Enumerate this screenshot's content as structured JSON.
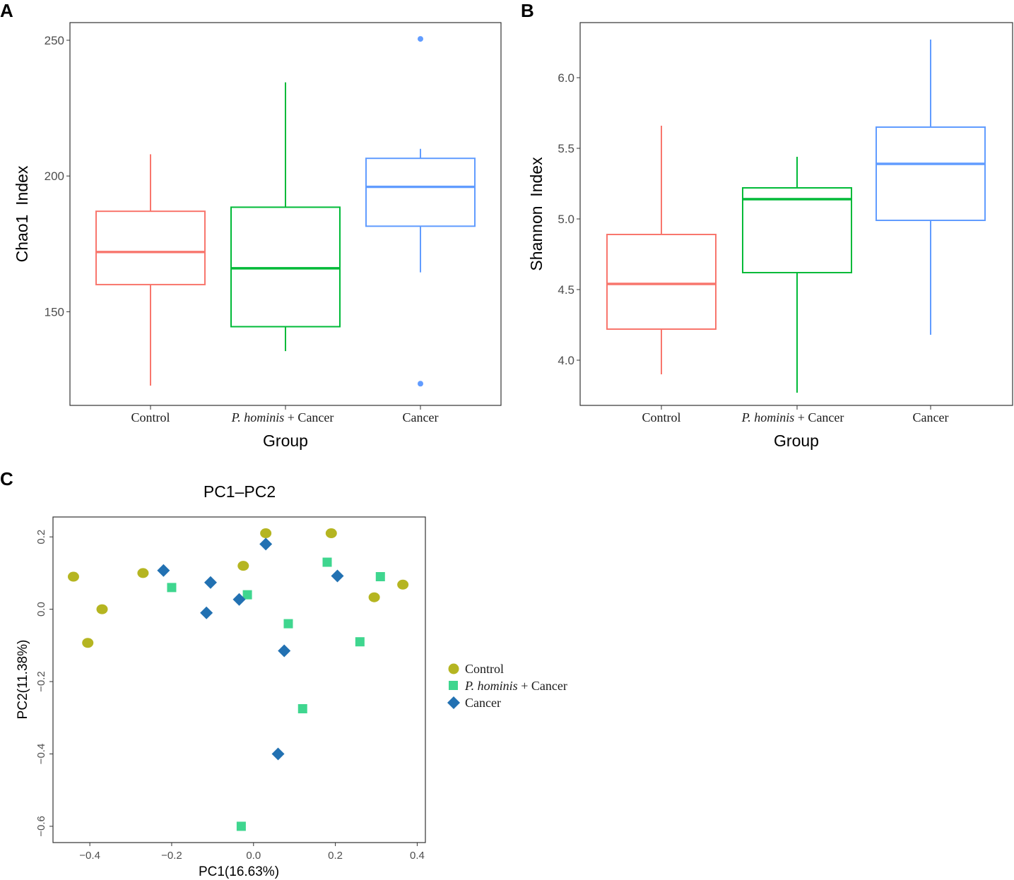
{
  "panels": {
    "a": {
      "letter": "A"
    },
    "b": {
      "letter": "B"
    },
    "c": {
      "letter": "C"
    }
  },
  "group_labels": {
    "control": "Control",
    "hominis_italic": "P. hominis",
    "hominis_rest": " + Cancer",
    "cancer": "Cancer"
  },
  "colors": {
    "control": "#F8766D",
    "hominis": "#00BA38",
    "cancer": "#619CFF",
    "pc_control": "#B5B521",
    "pc_hominis": "#3FD68F",
    "pc_cancer": "#2271B2"
  },
  "chart_data": [
    {
      "id": "chao1",
      "type": "box",
      "title": "",
      "xlabel": "Group",
      "ylabel": "Chao1  Index",
      "categories": [
        "Control",
        "P. hominis + Cancer",
        "Cancer"
      ],
      "ylim": [
        115.5,
        256.5
      ],
      "yticks": [
        150,
        200,
        250
      ],
      "boxes": [
        {
          "group": "control",
          "min": 122.8,
          "q1": 160,
          "median": 172,
          "q3": 187,
          "max": 208
        },
        {
          "group": "hominis",
          "min": 135.5,
          "q1": 144.5,
          "median": 166,
          "q3": 188.5,
          "max": 234.5
        },
        {
          "group": "cancer",
          "min": 164.5,
          "q1": 181.5,
          "median": 196,
          "q3": 206.5,
          "max": 210
        }
      ],
      "outliers": [
        {
          "group": "cancer",
          "value": 250.5
        },
        {
          "group": "cancer",
          "value": 123.5
        }
      ]
    },
    {
      "id": "shannon",
      "type": "box",
      "title": "",
      "xlabel": "Group",
      "ylabel": "Shannon  Index",
      "categories": [
        "Control",
        "P. hominis + Cancer",
        "Cancer"
      ],
      "ylim": [
        3.68,
        6.39
      ],
      "yticks": [
        4.0,
        4.5,
        5.0,
        5.5,
        6.0
      ],
      "ytick_labels": [
        "4.0",
        "4.5",
        "5.0",
        "5.5",
        "6.0"
      ],
      "boxes": [
        {
          "group": "control",
          "min": 3.9,
          "q1": 4.22,
          "median": 4.54,
          "q3": 4.89,
          "max": 5.66
        },
        {
          "group": "hominis",
          "min": 3.77,
          "q1": 4.62,
          "median": 5.14,
          "q3": 5.22,
          "max": 5.44
        },
        {
          "group": "cancer",
          "min": 4.18,
          "q1": 4.99,
          "median": 5.39,
          "q3": 5.65,
          "max": 6.27
        }
      ],
      "outliers": []
    },
    {
      "id": "pca",
      "type": "scatter",
      "title": "PC1–PC2",
      "xlabel": "PC1(16.63%)",
      "ylabel": "PC2(11.38%)",
      "xlim": [
        -0.49,
        0.42
      ],
      "ylim": [
        -0.645,
        0.255
      ],
      "xticks": [
        -0.4,
        -0.2,
        0.0,
        0.2,
        0.4
      ],
      "xtick_labels": [
        "−0.4",
        "−0.2",
        "0.0",
        "0.2",
        "0.4"
      ],
      "yticks": [
        -0.6,
        -0.4,
        -0.2,
        0.0,
        0.2
      ],
      "ytick_labels": [
        "−0.6",
        "−0.4",
        "−0.2",
        "0.0",
        "0.2"
      ],
      "legend_position": "right",
      "series": [
        {
          "name": "Control",
          "key": "control",
          "marker": "circle",
          "points": [
            [
              -0.44,
              0.09
            ],
            [
              -0.37,
              0.0
            ],
            [
              -0.405,
              -0.093
            ],
            [
              -0.27,
              0.1
            ],
            [
              -0.025,
              0.12
            ],
            [
              0.03,
              0.21
            ],
            [
              0.19,
              0.21
            ],
            [
              0.295,
              0.033
            ],
            [
              0.365,
              0.068
            ]
          ]
        },
        {
          "name": "P. hominis + Cancer",
          "key": "hominis",
          "marker": "square",
          "points": [
            [
              -0.2,
              0.06
            ],
            [
              -0.015,
              0.04
            ],
            [
              0.18,
              0.13
            ],
            [
              0.31,
              0.09
            ],
            [
              0.085,
              -0.04
            ],
            [
              0.26,
              -0.09
            ],
            [
              0.12,
              -0.275
            ],
            [
              -0.03,
              -0.6
            ]
          ]
        },
        {
          "name": "Cancer",
          "key": "cancer",
          "marker": "diamond",
          "points": [
            [
              -0.22,
              0.107
            ],
            [
              -0.105,
              0.074
            ],
            [
              -0.035,
              0.027
            ],
            [
              0.03,
              0.18
            ],
            [
              -0.115,
              -0.01
            ],
            [
              0.205,
              0.092
            ],
            [
              0.075,
              -0.115
            ],
            [
              0.06,
              -0.4
            ]
          ]
        }
      ]
    }
  ]
}
